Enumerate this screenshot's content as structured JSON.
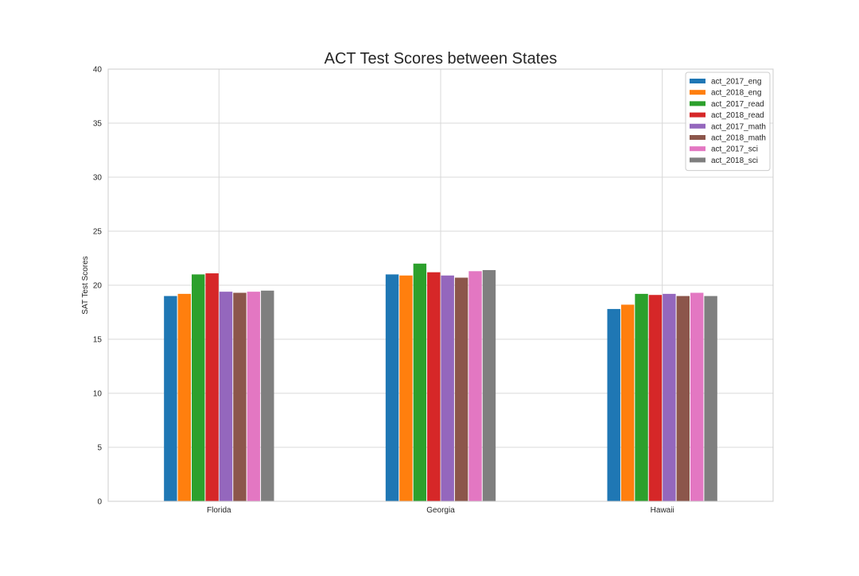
{
  "chart_data": {
    "type": "bar",
    "title": "ACT Test Scores between States",
    "xlabel": "",
    "ylabel": "SAT Test Scores",
    "categories": [
      "Florida",
      "Georgia",
      "Hawaii"
    ],
    "ylim": [
      0,
      40
    ],
    "yticks": [
      0,
      5,
      10,
      15,
      20,
      25,
      30,
      35,
      40
    ],
    "grid": true,
    "legend_position": "top-right",
    "series": [
      {
        "name": "act_2017_eng",
        "color": "#1f77b4",
        "values": [
          19.0,
          21.0,
          17.8
        ]
      },
      {
        "name": "act_2018_eng",
        "color": "#ff7f0e",
        "values": [
          19.2,
          20.9,
          18.2
        ]
      },
      {
        "name": "act_2017_read",
        "color": "#2ca02c",
        "values": [
          21.0,
          22.0,
          19.2
        ]
      },
      {
        "name": "act_2018_read",
        "color": "#d62728",
        "values": [
          21.1,
          21.2,
          19.1
        ]
      },
      {
        "name": "act_2017_math",
        "color": "#9467bd",
        "values": [
          19.4,
          20.9,
          19.2
        ]
      },
      {
        "name": "act_2018_math",
        "color": "#8c564b",
        "values": [
          19.3,
          20.7,
          19.0
        ]
      },
      {
        "name": "act_2017_sci",
        "color": "#e377c2",
        "values": [
          19.4,
          21.3,
          19.3
        ]
      },
      {
        "name": "act_2018_sci",
        "color": "#7f7f7f",
        "values": [
          19.5,
          21.4,
          19.0
        ]
      }
    ]
  }
}
